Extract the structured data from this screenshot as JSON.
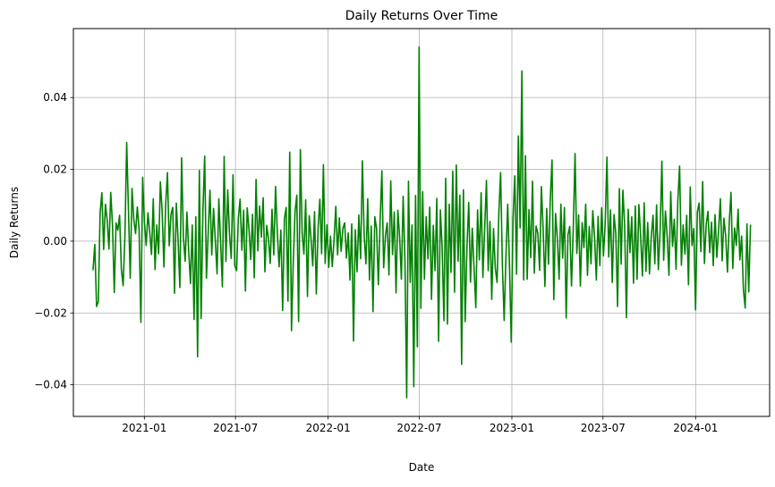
{
  "chart_data": {
    "type": "line",
    "title": "Daily Returns Over Time",
    "xlabel": "Date",
    "ylabel": "Daily Returns",
    "x_start": "2020-09-21",
    "x_end": "2024-04-19",
    "xlim": [
      "2020-08-13",
      "2024-05-27"
    ],
    "ylim": [
      -0.0488,
      0.0592
    ],
    "x_ticks": [
      "2021-01",
      "2021-07",
      "2022-01",
      "2022-07",
      "2023-01",
      "2023-07",
      "2024-01"
    ],
    "y_ticks": [
      -0.04,
      -0.02,
      0.0,
      0.02,
      0.04
    ],
    "y_tick_labels": [
      "−0.04",
      "−0.02",
      "0.00",
      "0.02",
      "0.04"
    ],
    "grid": true,
    "legend": "none",
    "series": [
      {
        "color": "#008000",
        "trading_days_per_week": 5,
        "values": [
          -0.0081,
          -0.0009,
          -0.0182,
          -0.0168,
          0.0079,
          0.0135,
          -0.0023,
          0.0103,
          0.0059,
          -0.0022,
          0.0136,
          0.0045,
          -0.0143,
          0.0051,
          0.0031,
          0.0072,
          -0.0078,
          -0.0124,
          0.0012,
          0.0275,
          0.0088,
          -0.0103,
          0.0147,
          0.0062,
          0.0021,
          0.0095,
          0.0034,
          -0.0226,
          0.0178,
          0.0054,
          -0.0012,
          0.0079,
          0.0024,
          -0.0037,
          0.0118,
          -0.0079,
          0.0045,
          -0.0035,
          0.0165,
          0.0084,
          -0.0072,
          0.0102,
          0.0191,
          -0.0013,
          0.0075,
          0.0094,
          -0.0145,
          0.0106,
          0.0004,
          -0.0129,
          0.0232,
          0.0012,
          -0.0056,
          0.0081,
          -0.0027,
          -0.0118,
          0.0045,
          -0.0218,
          0.0068,
          -0.0322,
          0.0197,
          -0.0215,
          0.0083,
          0.0237,
          -0.0103,
          0.0025,
          0.0142,
          -0.0038,
          0.0091,
          0.0003,
          -0.0091,
          0.0118,
          -0.0004,
          -0.0127,
          0.0236,
          -0.0056,
          0.0143,
          0.0021,
          -0.0048,
          0.0185,
          -0.0068,
          -0.0082,
          0.0064,
          0.0117,
          -0.0025,
          0.0086,
          -0.0139,
          0.0093,
          0.0034,
          -0.0051,
          0.0075,
          -0.0102,
          0.0172,
          -0.0027,
          0.0098,
          0.0011,
          0.0121,
          -0.0085,
          0.0044,
          0.0007,
          -0.0062,
          0.0089,
          -0.0038,
          0.0152,
          0.0025,
          -0.0071,
          0.0031,
          -0.0193,
          0.0063,
          0.0094,
          -0.0167,
          0.0248,
          -0.0249,
          -0.0057,
          0.0082,
          0.0128,
          -0.0224,
          0.0255,
          0.0024,
          -0.0036,
          0.0115,
          -0.0154,
          0.0071,
          0.0009,
          -0.0069,
          0.0082,
          -0.0147,
          0.0035,
          0.0117,
          -0.0035,
          0.0213,
          -0.0062,
          0.0046,
          -0.0073,
          0.0014,
          -0.0071,
          0.0004,
          0.0097,
          -0.0038,
          0.0065,
          -0.0028,
          0.0036,
          0.0051,
          -0.0047,
          0.0023,
          -0.0108,
          0.0048,
          -0.0278,
          0.0032,
          -0.0085,
          0.0073,
          -0.0049,
          0.0224,
          0.0016,
          -0.0063,
          0.0118,
          -0.0108,
          0.0042,
          -0.0196,
          0.0068,
          0.0035,
          -0.0121,
          0.0055,
          0.0196,
          -0.0074,
          0.0015,
          0.0051,
          -0.0094,
          0.0168,
          -0.0037,
          0.0081,
          -0.0144,
          0.0086,
          0.0012,
          -0.0106,
          0.0125,
          -0.0049,
          -0.0436,
          0.0167,
          -0.0115,
          0.0045,
          -0.0405,
          0.0127,
          -0.0294,
          0.0541,
          -0.0187,
          0.0138,
          -0.0106,
          0.0068,
          -0.0049,
          0.0095,
          -0.0162,
          0.0044,
          -0.0082,
          0.0119,
          -0.0279,
          0.0087,
          -0.0017,
          -0.0221,
          0.0175,
          -0.0231,
          0.0103,
          -0.0087,
          0.0195,
          -0.0142,
          0.0212,
          -0.0056,
          0.0128,
          -0.0343,
          0.0143,
          -0.0224,
          -0.0017,
          0.0108,
          -0.0114,
          0.0036,
          -0.0073,
          -0.0185,
          0.0087,
          -0.0052,
          0.0135,
          -0.0101,
          0.0036,
          0.0169,
          -0.0082,
          0.0055,
          -0.0162,
          0.0035,
          -0.0075,
          -0.0115,
          0.0079,
          0.0191,
          -0.0068,
          -0.0221,
          -0.0044,
          0.0103,
          -0.0068,
          -0.0281,
          0.0061,
          0.0182,
          -0.0092,
          0.0293,
          0.0037,
          0.0474,
          -0.0108,
          0.0238,
          -0.0106,
          0.0088,
          -0.0046,
          0.0167,
          -0.0089,
          0.0042,
          0.0022,
          -0.0081,
          0.0152,
          0.0031,
          -0.0126,
          0.0091,
          -0.0064,
          0.0113,
          0.0226,
          -0.0163,
          0.0077,
          0.0009,
          -0.0106,
          0.0103,
          -0.0047,
          0.0094,
          -0.0214,
          0.0018,
          0.0041,
          -0.0125,
          0.0036,
          0.0244,
          -0.0034,
          0.0073,
          -0.0125,
          0.0052,
          -0.0018,
          0.0103,
          -0.0095,
          0.0041,
          -0.0063,
          0.0085,
          0.0012,
          -0.0108,
          0.0069,
          -0.0068,
          0.0093,
          -0.0041,
          0.0049,
          0.0234,
          -0.0044,
          0.0087,
          -0.0115,
          0.0074,
          0.0021,
          -0.0182,
          0.0146,
          -0.0064,
          0.0142,
          0.0043,
          -0.0213,
          0.0089,
          -0.0032,
          0.0068,
          -0.0117,
          0.0098,
          -0.0106,
          0.0102,
          0.0015,
          -0.0097,
          0.0107,
          -0.0084,
          0.0052,
          -0.0091,
          0.0012,
          0.0072,
          -0.0063,
          0.0101,
          -0.0079,
          0.0028,
          0.0223,
          -0.0053,
          0.0084,
          0.0013,
          -0.0095,
          0.0138,
          -0.0014,
          0.0061,
          -0.0078,
          0.0114,
          0.0209,
          -0.0067,
          0.0045,
          -0.0036,
          0.0072,
          -0.0121,
          0.0151,
          -0.0012,
          0.0035,
          -0.0191,
          0.0081,
          0.0106,
          -0.0029,
          0.0166,
          -0.0062,
          0.0047,
          0.0083,
          -0.0032,
          0.0053,
          -0.0068,
          0.0074,
          -0.0045,
          0.0031,
          0.0118,
          -0.0055,
          0.0064,
          0.0015,
          -0.0086,
          0.0052,
          0.0136,
          -0.0076,
          0.0037,
          -0.0012,
          0.0089,
          -0.0052,
          0.0014,
          -0.0135,
          -0.0186,
          0.0048,
          -0.0141,
          0.0046
        ]
      }
    ]
  }
}
